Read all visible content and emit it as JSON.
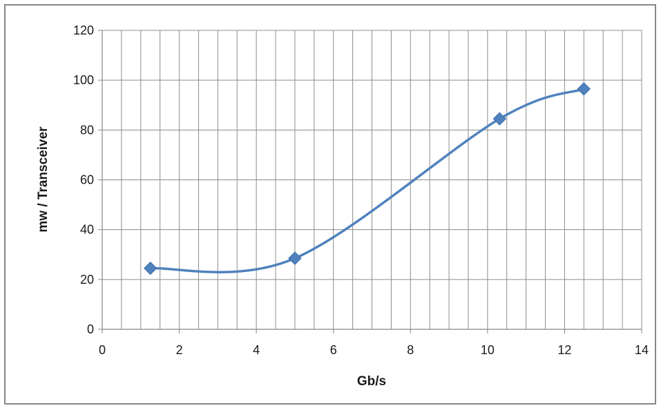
{
  "chart_data": {
    "type": "scatter",
    "style": "smooth-line-with-markers",
    "title": "",
    "xlabel": "Gb/s",
    "ylabel": "mw / Transceiver",
    "xlim": [
      0,
      14
    ],
    "ylim": [
      0,
      120
    ],
    "x_major_ticks": [
      0,
      2,
      4,
      6,
      8,
      10,
      12,
      14
    ],
    "y_major_ticks": [
      0,
      20,
      40,
      60,
      80,
      100,
      120
    ],
    "x_minor_step": 0.5,
    "grid": true,
    "legend": "none",
    "series": [
      {
        "marker": "diamond",
        "color": "#4F81BD",
        "x": [
          1.25,
          5.0,
          10.3125,
          12.5
        ],
        "y": [
          24.5,
          28.5,
          84.5,
          96.5
        ]
      }
    ]
  }
}
